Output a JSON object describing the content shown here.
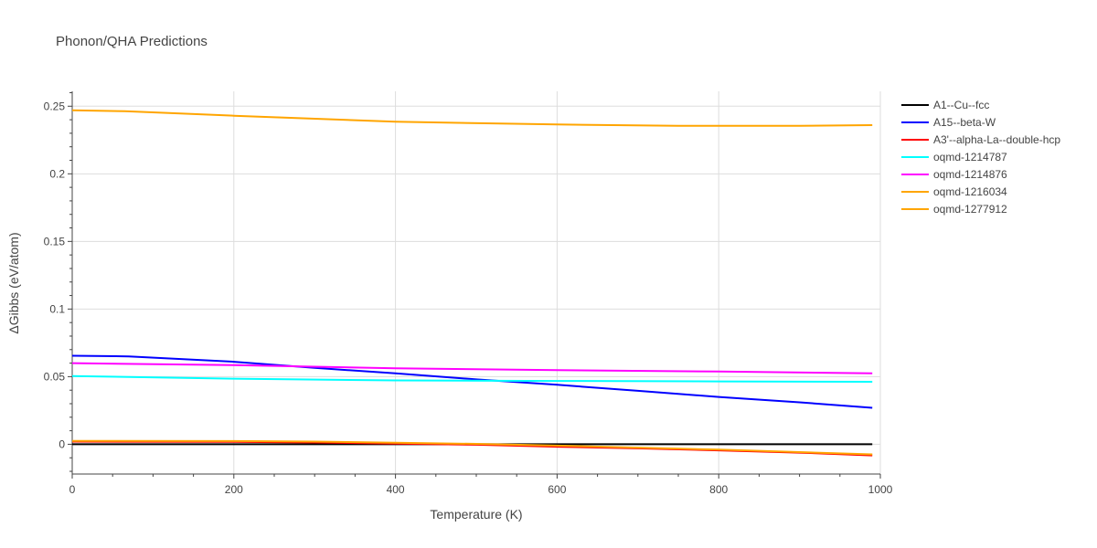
{
  "chart_data": {
    "type": "line",
    "title": "Phonon/QHA Predictions",
    "xlabel": "Temperature (K)",
    "ylabel": "ΔGibbs (eV/atom)",
    "xlim": [
      0,
      1000
    ],
    "ylim": [
      -0.022,
      0.261
    ],
    "x_ticks": [
      0,
      200,
      400,
      600,
      800,
      1000
    ],
    "x_tick_labels": [
      "0",
      "200",
      "400",
      "600",
      "800",
      "1000"
    ],
    "y_ticks": [
      0,
      0.05,
      0.1,
      0.15,
      0.2,
      0.25
    ],
    "y_tick_labels": [
      "0",
      "0.05",
      "0.1",
      "0.15",
      "0.2",
      "0.25"
    ],
    "grid": true,
    "legend_position": "top-right",
    "series": [
      {
        "name": "A1--Cu--fcc",
        "color": "#000000",
        "x": [
          0,
          200,
          400,
          600,
          800,
          990
        ],
        "y": [
          0,
          0,
          0,
          0,
          0,
          0
        ]
      },
      {
        "name": "A15--beta-W",
        "color": "#0000ff",
        "x": [
          0,
          70,
          200,
          300,
          400,
          500,
          600,
          700,
          800,
          900,
          990
        ],
        "y": [
          0.0655,
          0.065,
          0.061,
          0.0565,
          0.0525,
          0.048,
          0.044,
          0.0395,
          0.035,
          0.031,
          0.027
        ]
      },
      {
        "name": "A3'--alpha-La--double-hcp",
        "color": "#ff0000",
        "x": [
          0,
          200,
          300,
          400,
          500,
          600,
          700,
          800,
          900,
          990
        ],
        "y": [
          0.002,
          0.0018,
          0.0013,
          0.0005,
          -0.0003,
          -0.0018,
          -0.003,
          -0.0045,
          -0.0062,
          -0.0082
        ]
      },
      {
        "name": "oqmd-1214787",
        "color": "#00ffff",
        "x": [
          0,
          200,
          400,
          600,
          800,
          990
        ],
        "y": [
          0.0505,
          0.0485,
          0.0472,
          0.0468,
          0.0465,
          0.0462
        ]
      },
      {
        "name": "oqmd-1214876",
        "color": "#ff00ff",
        "x": [
          0,
          200,
          400,
          600,
          800,
          990
        ],
        "y": [
          0.06,
          0.0585,
          0.0562,
          0.0548,
          0.0538,
          0.0525
        ]
      },
      {
        "name": "oqmd-1216034",
        "color": "#ffa500",
        "x": [
          0,
          200,
          300,
          400,
          500,
          600,
          700,
          800,
          900,
          990
        ],
        "y": [
          0.0025,
          0.0024,
          0.002,
          0.0012,
          0.0003,
          -0.001,
          -0.0025,
          -0.004,
          -0.0058,
          -0.0075
        ]
      },
      {
        "name": "oqmd-1277912",
        "color": "#ffa500",
        "x": [
          0,
          65,
          200,
          400,
          600,
          750,
          900,
          990
        ],
        "y": [
          0.247,
          0.2463,
          0.243,
          0.2385,
          0.2365,
          0.2355,
          0.2355,
          0.236
        ]
      }
    ]
  }
}
